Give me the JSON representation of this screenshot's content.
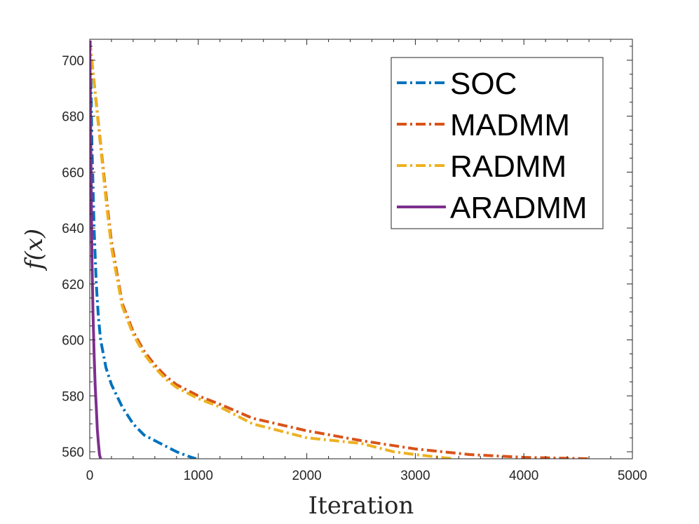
{
  "chart_data": {
    "type": "line",
    "title": "",
    "xlabel": "Iteration",
    "ylabel": "f(x)",
    "xlim": [
      0,
      5000
    ],
    "ylim": [
      557.5,
      707.5
    ],
    "xticks": [
      0,
      1000,
      2000,
      3000,
      4000,
      5000
    ],
    "yticks": [
      560,
      580,
      600,
      620,
      640,
      660,
      680,
      700
    ],
    "grid": false,
    "legend_position": "top-right",
    "series": [
      {
        "name": "SOC",
        "color": "#0072BD",
        "style": "dashdot",
        "x": [
          5,
          20,
          40,
          60,
          80,
          100,
          150,
          200,
          300,
          400,
          500,
          600,
          700,
          800,
          900,
          980
        ],
        "y": [
          707,
          670,
          640,
          620,
          608,
          600,
          590,
          584,
          576,
          570,
          566,
          564,
          562,
          560,
          558.5,
          557.5
        ]
      },
      {
        "name": "MADMM",
        "color": "#D95319",
        "style": "dashdot",
        "x": [
          0,
          100,
          150,
          200,
          300,
          400,
          500,
          600,
          700,
          800,
          900,
          1000,
          1200,
          1500,
          2000,
          2500,
          3000,
          3500,
          4000,
          4600
        ],
        "y": [
          707,
          670,
          652,
          635,
          613,
          603,
          596,
          591,
          587,
          584,
          582,
          580,
          577,
          572,
          567.5,
          564,
          561,
          559,
          558,
          557.5
        ]
      },
      {
        "name": "RADMM",
        "color": "#EDB120",
        "style": "dashdot",
        "x": [
          0,
          100,
          150,
          200,
          300,
          400,
          500,
          600,
          700,
          800,
          900,
          1000,
          1200,
          1500,
          1800,
          2000,
          2500,
          2800,
          3000,
          3350
        ],
        "y": [
          707,
          669,
          650,
          633,
          612,
          602,
          595,
          590,
          586,
          583,
          581,
          579,
          576,
          570,
          567,
          565,
          563,
          560,
          559,
          557.5
        ]
      },
      {
        "name": "ARADMM",
        "color": "#7E2F8E",
        "style": "solid",
        "x": [
          0,
          5,
          10,
          15,
          20,
          30,
          40,
          50,
          60,
          70,
          80,
          90,
          100
        ],
        "y": [
          707,
          690,
          670,
          650,
          630,
          610,
          595,
          584,
          576,
          568,
          563,
          559,
          557.5
        ]
      }
    ]
  }
}
